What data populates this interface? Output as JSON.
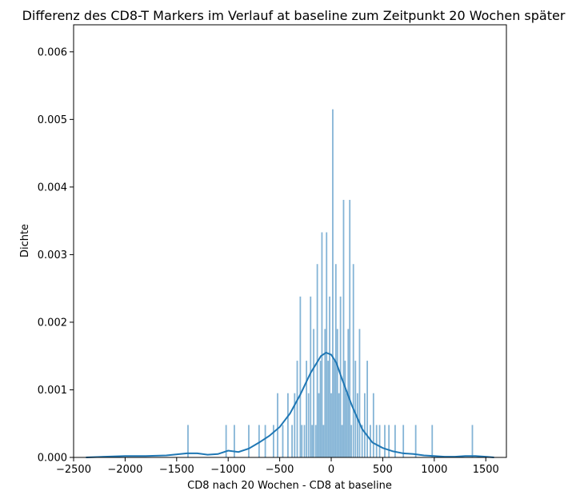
{
  "chart_data": {
    "type": "histogram",
    "title": "Differenz des CD8-T Markers im Verlauf at baseline zum Zeitpunkt 20 Wochen später",
    "xlabel": "CD8 nach 20 Wochen - CD8 at baseline",
    "ylabel": "Dichte",
    "xlim": [
      -2500,
      1700
    ],
    "ylim": [
      0,
      0.0064
    ],
    "xticks": [
      -2500,
      -2000,
      -1500,
      -1000,
      -500,
      0,
      500,
      1000,
      1500
    ],
    "xtick_labels": [
      "−2500",
      "−2000",
      "−1500",
      "−1000",
      "−500",
      "0",
      "500",
      "1000",
      "1500"
    ],
    "yticks": [
      0,
      0.001,
      0.002,
      0.003,
      0.004,
      0.005,
      0.006
    ],
    "ytick_labels": [
      "0.000",
      "0.001",
      "0.002",
      "0.003",
      "0.004",
      "0.005",
      "0.006"
    ],
    "grid": false,
    "colors": {
      "bar": "#1f77b4",
      "kde": "#1f77b4"
    },
    "bars": [
      {
        "x": -1390,
        "density": 0.00048
      },
      {
        "x": -1020,
        "density": 0.00048
      },
      {
        "x": -940,
        "density": 0.00048
      },
      {
        "x": -800,
        "density": 0.00048
      },
      {
        "x": -700,
        "density": 0.00048
      },
      {
        "x": -640,
        "density": 0.00048
      },
      {
        "x": -560,
        "density": 0.00048
      },
      {
        "x": -520,
        "density": 0.00095
      },
      {
        "x": -470,
        "density": 0.00048
      },
      {
        "x": -420,
        "density": 0.00095
      },
      {
        "x": -380,
        "density": 0.00048
      },
      {
        "x": -355,
        "density": 0.00095
      },
      {
        "x": -330,
        "density": 0.00143
      },
      {
        "x": -300,
        "density": 0.00238
      },
      {
        "x": -285,
        "density": 0.00048
      },
      {
        "x": -260,
        "density": 0.00048
      },
      {
        "x": -240,
        "density": 0.00143
      },
      {
        "x": -220,
        "density": 0.00095
      },
      {
        "x": -200,
        "density": 0.00238
      },
      {
        "x": -185,
        "density": 0.00048
      },
      {
        "x": -170,
        "density": 0.0019
      },
      {
        "x": -150,
        "density": 0.00048
      },
      {
        "x": -135,
        "density": 0.00286
      },
      {
        "x": -120,
        "density": 0.00095
      },
      {
        "x": -105,
        "density": 0.00143
      },
      {
        "x": -90,
        "density": 0.00333
      },
      {
        "x": -75,
        "density": 0.00048
      },
      {
        "x": -60,
        "density": 0.0019
      },
      {
        "x": -45,
        "density": 0.00333
      },
      {
        "x": -30,
        "density": 0.00143
      },
      {
        "x": -15,
        "density": 0.00238
      },
      {
        "x": 0,
        "density": 0.00095
      },
      {
        "x": 15,
        "density": 0.00515
      },
      {
        "x": 30,
        "density": 0.00143
      },
      {
        "x": 45,
        "density": 0.00286
      },
      {
        "x": 60,
        "density": 0.0019
      },
      {
        "x": 75,
        "density": 0.00095
      },
      {
        "x": 90,
        "density": 0.00238
      },
      {
        "x": 105,
        "density": 0.00048
      },
      {
        "x": 120,
        "density": 0.00381
      },
      {
        "x": 135,
        "density": 0.00143
      },
      {
        "x": 150,
        "density": 0.00095
      },
      {
        "x": 165,
        "density": 0.0019
      },
      {
        "x": 180,
        "density": 0.00381
      },
      {
        "x": 195,
        "density": 0.00048
      },
      {
        "x": 215,
        "density": 0.00286
      },
      {
        "x": 235,
        "density": 0.00143
      },
      {
        "x": 255,
        "density": 0.00095
      },
      {
        "x": 275,
        "density": 0.0019
      },
      {
        "x": 300,
        "density": 0.00048
      },
      {
        "x": 325,
        "density": 0.00095
      },
      {
        "x": 350,
        "density": 0.00143
      },
      {
        "x": 380,
        "density": 0.00048
      },
      {
        "x": 410,
        "density": 0.00095
      },
      {
        "x": 440,
        "density": 0.00048
      },
      {
        "x": 470,
        "density": 0.00048
      },
      {
        "x": 520,
        "density": 0.00048
      },
      {
        "x": 560,
        "density": 0.00048
      },
      {
        "x": 620,
        "density": 0.00048
      },
      {
        "x": 700,
        "density": 0.00048
      },
      {
        "x": 820,
        "density": 0.00048
      },
      {
        "x": 980,
        "density": 0.00048
      },
      {
        "x": 1370,
        "density": 0.00048
      }
    ],
    "kde": {
      "x": [
        -2380,
        -2200,
        -2000,
        -1800,
        -1600,
        -1400,
        -1300,
        -1200,
        -1100,
        -1000,
        -900,
        -800,
        -700,
        -600,
        -500,
        -400,
        -300,
        -200,
        -100,
        -50,
        0,
        50,
        100,
        200,
        300,
        400,
        500,
        600,
        700,
        800,
        900,
        1000,
        1100,
        1200,
        1300,
        1400,
        1500,
        1580
      ],
      "y": [
        0.0,
        1e-05,
        2e-05,
        2e-05,
        3e-05,
        6e-05,
        6e-05,
        4e-05,
        5e-05,
        0.0001,
        8e-05,
        0.00013,
        0.00022,
        0.00032,
        0.00045,
        0.00065,
        0.00093,
        0.00125,
        0.0015,
        0.00155,
        0.00152,
        0.0014,
        0.00118,
        0.00077,
        0.00042,
        0.00022,
        0.00014,
        9e-05,
        6e-05,
        5e-05,
        3e-05,
        2e-05,
        1e-05,
        1e-05,
        2e-05,
        2e-05,
        1e-05,
        0.0
      ]
    }
  }
}
